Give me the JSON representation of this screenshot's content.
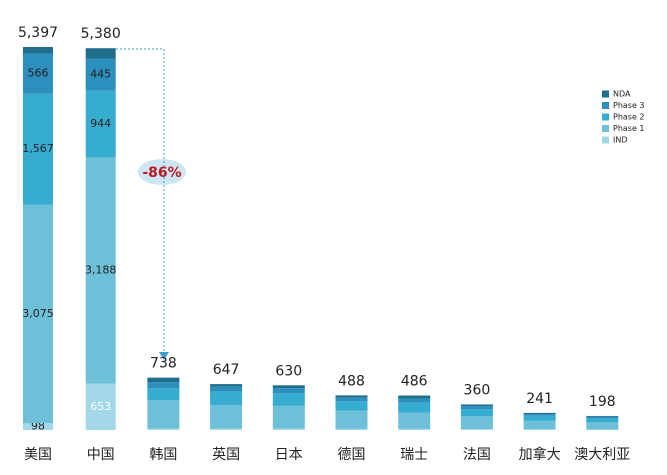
{
  "chart_data": {
    "type": "stacked_bar",
    "categories": [
      "美国",
      "中国",
      "韩国",
      "英国",
      "日本",
      "德国",
      "瑞士",
      "法国",
      "加拿大",
      "澳大利亚"
    ],
    "totals": [
      5397,
      5380,
      738,
      647,
      630,
      488,
      486,
      360,
      241,
      198
    ],
    "total_labels": [
      "5,397",
      "5,380",
      "738",
      "647",
      "630",
      "488",
      "486",
      "360",
      "241",
      "198"
    ],
    "series": [
      {
        "name": "IND",
        "color": "#a3d8e8",
        "values": [
          98,
          653,
          20,
          20,
          20,
          15,
          15,
          12,
          10,
          8
        ],
        "value_labels": [
          "98",
          "653",
          null,
          null,
          null,
          null,
          null,
          null,
          null,
          null
        ]
      },
      {
        "name": "Phase 1",
        "color": "#6ec0d9",
        "values": [
          3075,
          3188,
          400,
          330,
          320,
          260,
          230,
          180,
          120,
          100
        ],
        "value_labels": [
          "3,075",
          "3,188",
          null,
          null,
          null,
          null,
          null,
          null,
          null,
          null
        ]
      },
      {
        "name": "Phase 2",
        "color": "#35acd0",
        "values": [
          1567,
          944,
          170,
          190,
          180,
          130,
          140,
          100,
          70,
          55
        ],
        "value_labels": [
          "1,567",
          "944",
          null,
          null,
          null,
          null,
          null,
          null,
          null,
          null
        ]
      },
      {
        "name": "Phase 3",
        "color": "#2d8fbd",
        "values": [
          566,
          445,
          85,
          70,
          70,
          50,
          60,
          45,
          25,
          22
        ],
        "value_labels": [
          "566",
          "445",
          null,
          null,
          null,
          null,
          null,
          null,
          null,
          null
        ]
      },
      {
        "name": "NDA",
        "color": "#1f6e8c",
        "values": [
          91,
          150,
          63,
          37,
          40,
          33,
          41,
          23,
          16,
          13
        ]
      }
    ],
    "annotation": "-86%"
  }
}
